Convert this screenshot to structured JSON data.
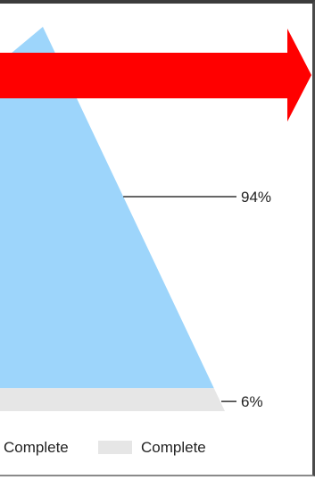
{
  "chart_data": {
    "type": "funnel",
    "segments": [
      {
        "name": "Complete",
        "value": 94,
        "label": "94%",
        "color": "#9dd5fb"
      },
      {
        "name": "Complete",
        "value": 6,
        "label": "6%",
        "color": "#e6e6e6"
      }
    ],
    "legend": {
      "position": "bottom"
    }
  },
  "annotation": {
    "shape": "arrow",
    "direction": "right",
    "color": "#ff0000"
  },
  "border_color": "#3c3c3c"
}
